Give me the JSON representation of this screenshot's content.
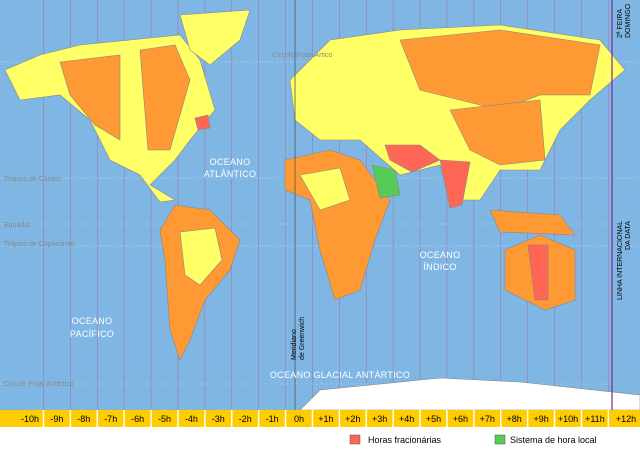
{
  "oceans": {
    "atlantic": [
      "OCEANO",
      "ATLÂNTICO"
    ],
    "pacific": [
      "OCEANO",
      "PACÍFICO"
    ],
    "indian": [
      "OCEANO",
      "ÍNDICO"
    ],
    "antarctic": "OCEANO GLACIAL ANTÁRTICO"
  },
  "lines": {
    "arctic_circle": "Círculo Polar Ártico",
    "tropic_cancer": "Trópico de Câncer",
    "equator": "Equador",
    "tropic_capricorn": "Trópico de Capricórnio",
    "antarctic_circle": "Círculo Polar Antártico"
  },
  "meridian": [
    "Meridiano",
    "de Greenwich"
  ],
  "date_line": [
    "LINHA INTERNACIONAL",
    "DA DATA"
  ],
  "days": [
    "2ª FEIRA",
    "DOMINGO"
  ],
  "zones": [
    "-10h",
    "-9h",
    "-8h",
    "-7h",
    "-6h",
    "-5h",
    "-4h",
    "-3h",
    "-2h",
    "-1h",
    "0h",
    "+1h",
    "+2h",
    "+3h",
    "+4h",
    "+5h",
    "+6h",
    "+7h",
    "+8h",
    "+9h",
    "+10h",
    "+11h",
    "+12h"
  ],
  "legend": {
    "fractional": "Horas fracionárias",
    "local": "Sistema de hora local"
  }
}
